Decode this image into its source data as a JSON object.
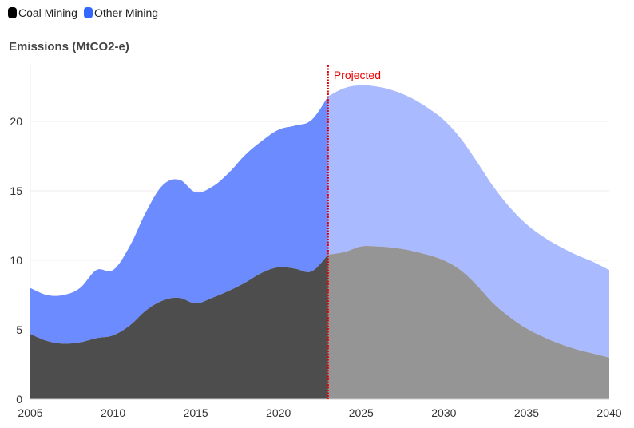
{
  "legend": {
    "items": [
      {
        "label": "Coal Mining",
        "color": "#000000"
      },
      {
        "label": "Other Mining",
        "color": "#3366ff"
      }
    ]
  },
  "axis": {
    "y_title": "Emissions (MtCO2-e)"
  },
  "annotation": {
    "label": "Projected",
    "x": 2023,
    "color": "#e00000"
  },
  "colors": {
    "coal_hist": "#4d4d4d",
    "other_hist": "#6b8bff",
    "coal_proj": "#959595",
    "other_proj": "#aabaff",
    "grid": "#eeeeee"
  },
  "chart_data": {
    "type": "area",
    "stacked": true,
    "title": "",
    "xlabel": "",
    "ylabel": "Emissions (MtCO2-e)",
    "xlim": [
      2005,
      2040
    ],
    "ylim": [
      0,
      24
    ],
    "x_ticks": [
      2005,
      2010,
      2015,
      2020,
      2025,
      2030,
      2035,
      2040
    ],
    "y_ticks": [
      0,
      5,
      10,
      15,
      20
    ],
    "grid": "horizontal",
    "legend_position": "top-left",
    "projection_start": 2023,
    "x": [
      2005,
      2006,
      2007,
      2008,
      2009,
      2010,
      2011,
      2012,
      2013,
      2014,
      2015,
      2016,
      2017,
      2018,
      2019,
      2020,
      2021,
      2022,
      2023,
      2024,
      2025,
      2026,
      2027,
      2028,
      2029,
      2030,
      2031,
      2032,
      2033,
      2034,
      2035,
      2036,
      2037,
      2038,
      2039,
      2040
    ],
    "series": [
      {
        "name": "Coal Mining",
        "values": [
          4.7,
          4.2,
          4.0,
          4.1,
          4.4,
          4.6,
          5.3,
          6.4,
          7.1,
          7.3,
          6.9,
          7.3,
          7.8,
          8.4,
          9.1,
          9.5,
          9.4,
          9.2,
          10.4,
          10.6,
          11.0,
          11.0,
          10.9,
          10.7,
          10.4,
          10.0,
          9.3,
          8.2,
          6.9,
          5.9,
          5.1,
          4.5,
          4.0,
          3.6,
          3.3,
          3.0
        ]
      },
      {
        "name": "Other Mining",
        "values": [
          3.3,
          3.3,
          3.5,
          3.9,
          4.9,
          4.7,
          5.7,
          7.1,
          8.3,
          8.5,
          8.0,
          8.0,
          8.5,
          9.2,
          9.5,
          9.9,
          10.3,
          10.9,
          11.4,
          11.8,
          11.6,
          11.5,
          11.3,
          11.0,
          10.6,
          10.1,
          9.5,
          8.9,
          8.4,
          7.9,
          7.5,
          7.2,
          7.0,
          6.8,
          6.6,
          6.3
        ]
      }
    ]
  }
}
